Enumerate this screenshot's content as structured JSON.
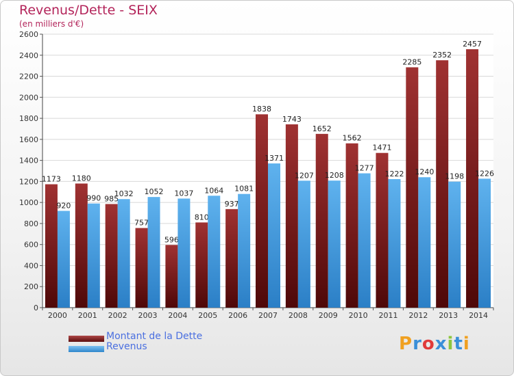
{
  "chart_data": {
    "type": "bar",
    "title": "Revenus/Dette - SEIX",
    "subtitle": "(en milliers d'€)",
    "categories": [
      "2000",
      "2001",
      "2002",
      "2003",
      "2004",
      "2005",
      "2006",
      "2007",
      "2008",
      "2009",
      "2010",
      "2011",
      "2012",
      "2013",
      "2014"
    ],
    "series": [
      {
        "name": "Montant de la Dette",
        "color": "#7a1a1a",
        "values": [
          1173,
          1180,
          985,
          757,
          596,
          810,
          937,
          1838,
          1743,
          1652,
          1562,
          1471,
          2285,
          2352,
          2457
        ]
      },
      {
        "name": "Revenus",
        "color": "#3d9be0",
        "values": [
          920,
          990,
          1032,
          1052,
          1037,
          1064,
          1081,
          1371,
          1207,
          1208,
          1277,
          1222,
          1240,
          1198,
          1226
        ]
      }
    ],
    "ylim": [
      0,
      2600
    ],
    "yticks": [
      0,
      200,
      400,
      600,
      800,
      1000,
      1200,
      1400,
      1600,
      1800,
      2000,
      2200,
      2400,
      2600
    ],
    "grid": true,
    "legend_position": "bottom-left"
  },
  "logo": {
    "letters": [
      "P",
      "r",
      "o",
      "x",
      "i",
      "t",
      "i"
    ],
    "colors": [
      "#f0a020",
      "#3a8fd8",
      "#e03a3a",
      "#3a8fd8",
      "#8cc63f",
      "#3a8fd8",
      "#f0a020"
    ]
  }
}
